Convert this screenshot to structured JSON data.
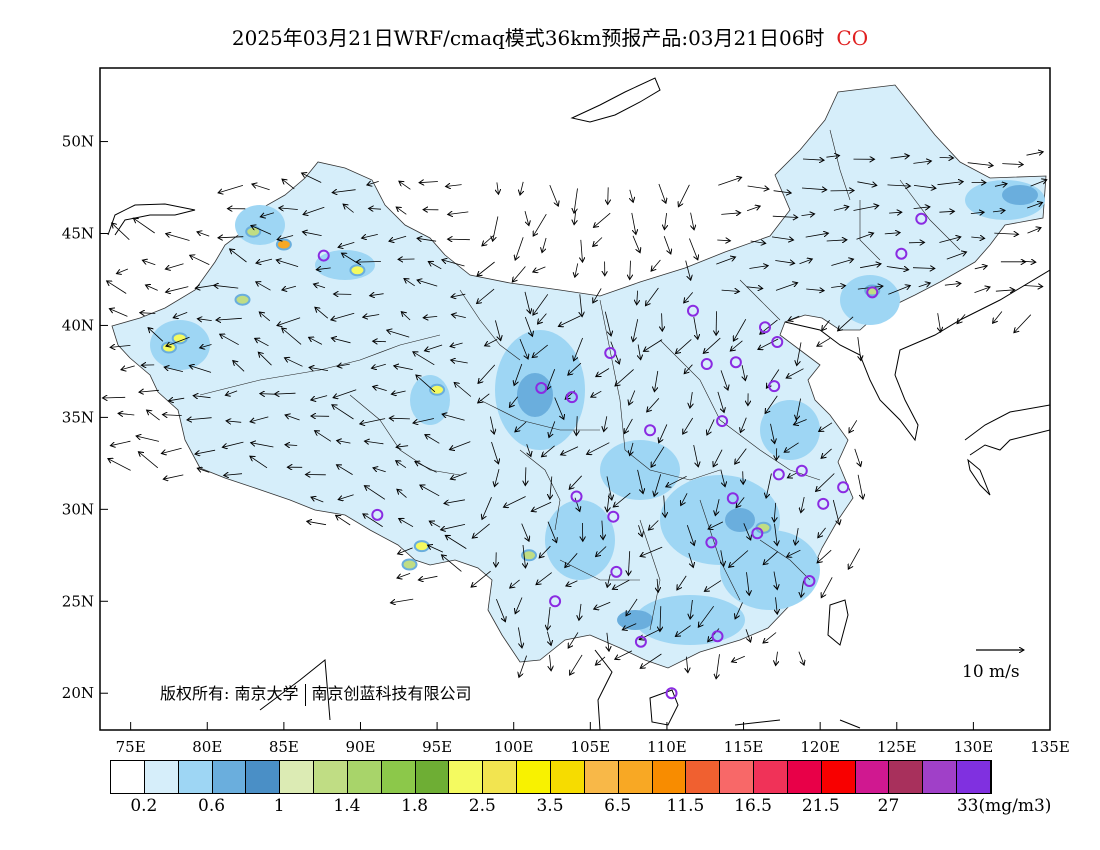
{
  "title": {
    "text": "2025年03月21日WRF/cmaq模式36km预报产品:03月21日06时",
    "species": "CO"
  },
  "axes": {
    "lat_labels": [
      "50N",
      "45N",
      "40N",
      "35N",
      "30N",
      "25N",
      "20N"
    ],
    "lon_labels": [
      "75E",
      "80E",
      "85E",
      "90E",
      "95E",
      "100E",
      "105E",
      "110E",
      "115E",
      "120E",
      "125E",
      "130E",
      "135E"
    ]
  },
  "copyright": {
    "prefix": "版权所有:",
    "org1": "南京大学",
    "org2": "南京创蓝科技有限公司"
  },
  "wind_reference": {
    "label": "10 m/s",
    "speed": 10
  },
  "colorbar": {
    "colors": [
      "#ffffff",
      "#d6eefa",
      "#9ed6f4",
      "#6aaedd",
      "#4a8fc6",
      "#dcebb4",
      "#c0dd84",
      "#a8d46a",
      "#8cc84a",
      "#6eae34",
      "#f4fa60",
      "#f2e450",
      "#f8f200",
      "#f6dc00",
      "#f8b848",
      "#f8a824",
      "#f88c00",
      "#f06030",
      "#f86868",
      "#f03258",
      "#e80048",
      "#f80000",
      "#d01890",
      "#a8305c",
      "#a040c8",
      "#8030e0"
    ],
    "labels": [
      "0.2",
      "0.6",
      "1",
      "1.4",
      "1.8",
      "2.5",
      "3.5",
      "6.5",
      "11.5",
      "16.5",
      "21.5",
      "27",
      "33(mg/m3)"
    ]
  },
  "cities": [
    {
      "lon": 87.6,
      "lat": 43.8
    },
    {
      "lon": 91.1,
      "lat": 29.7
    },
    {
      "lon": 101.8,
      "lat": 36.6
    },
    {
      "lon": 103.8,
      "lat": 36.1
    },
    {
      "lon": 106.3,
      "lat": 38.5
    },
    {
      "lon": 111.7,
      "lat": 40.8
    },
    {
      "lon": 112.6,
      "lat": 37.9
    },
    {
      "lon": 114.5,
      "lat": 38.0
    },
    {
      "lon": 116.4,
      "lat": 39.9
    },
    {
      "lon": 117.2,
      "lat": 39.1
    },
    {
      "lon": 117.0,
      "lat": 36.7
    },
    {
      "lon": 113.6,
      "lat": 34.8
    },
    {
      "lon": 108.9,
      "lat": 34.3
    },
    {
      "lon": 104.1,
      "lat": 30.7
    },
    {
      "lon": 106.5,
      "lat": 29.6
    },
    {
      "lon": 106.7,
      "lat": 26.6
    },
    {
      "lon": 102.7,
      "lat": 25.0
    },
    {
      "lon": 108.3,
      "lat": 22.8
    },
    {
      "lon": 113.3,
      "lat": 23.1
    },
    {
      "lon": 110.3,
      "lat": 20.0
    },
    {
      "lon": 112.9,
      "lat": 28.2
    },
    {
      "lon": 114.3,
      "lat": 30.6
    },
    {
      "lon": 115.9,
      "lat": 28.7
    },
    {
      "lon": 117.3,
      "lat": 31.9
    },
    {
      "lon": 118.8,
      "lat": 32.1
    },
    {
      "lon": 120.2,
      "lat": 30.3
    },
    {
      "lon": 121.5,
      "lat": 31.2
    },
    {
      "lon": 119.3,
      "lat": 26.1
    },
    {
      "lon": 123.4,
      "lat": 41.8
    },
    {
      "lon": 125.3,
      "lat": 43.9
    },
    {
      "lon": 126.6,
      "lat": 45.8
    }
  ],
  "hotspots": [
    {
      "lon": 77.5,
      "lat": 38.8,
      "level": "yellow"
    },
    {
      "lon": 78.2,
      "lat": 39.3,
      "level": "yellow"
    },
    {
      "lon": 85.0,
      "lat": 44.4,
      "level": "orange"
    },
    {
      "lon": 89.8,
      "lat": 43.0,
      "level": "yellow"
    },
    {
      "lon": 95.0,
      "lat": 36.5,
      "level": "yellow"
    },
    {
      "lon": 94.0,
      "lat": 28.0,
      "level": "yellow"
    },
    {
      "lon": 82.3,
      "lat": 41.4,
      "level": "green"
    },
    {
      "lon": 83.0,
      "lat": 45.1,
      "level": "green"
    },
    {
      "lon": 116.3,
      "lat": 29.0,
      "level": "green"
    },
    {
      "lon": 123.4,
      "lat": 41.9,
      "level": "green"
    },
    {
      "lon": 101.0,
      "lat": 27.5,
      "level": "green"
    },
    {
      "lon": 93.2,
      "lat": 27.0,
      "level": "green"
    }
  ]
}
